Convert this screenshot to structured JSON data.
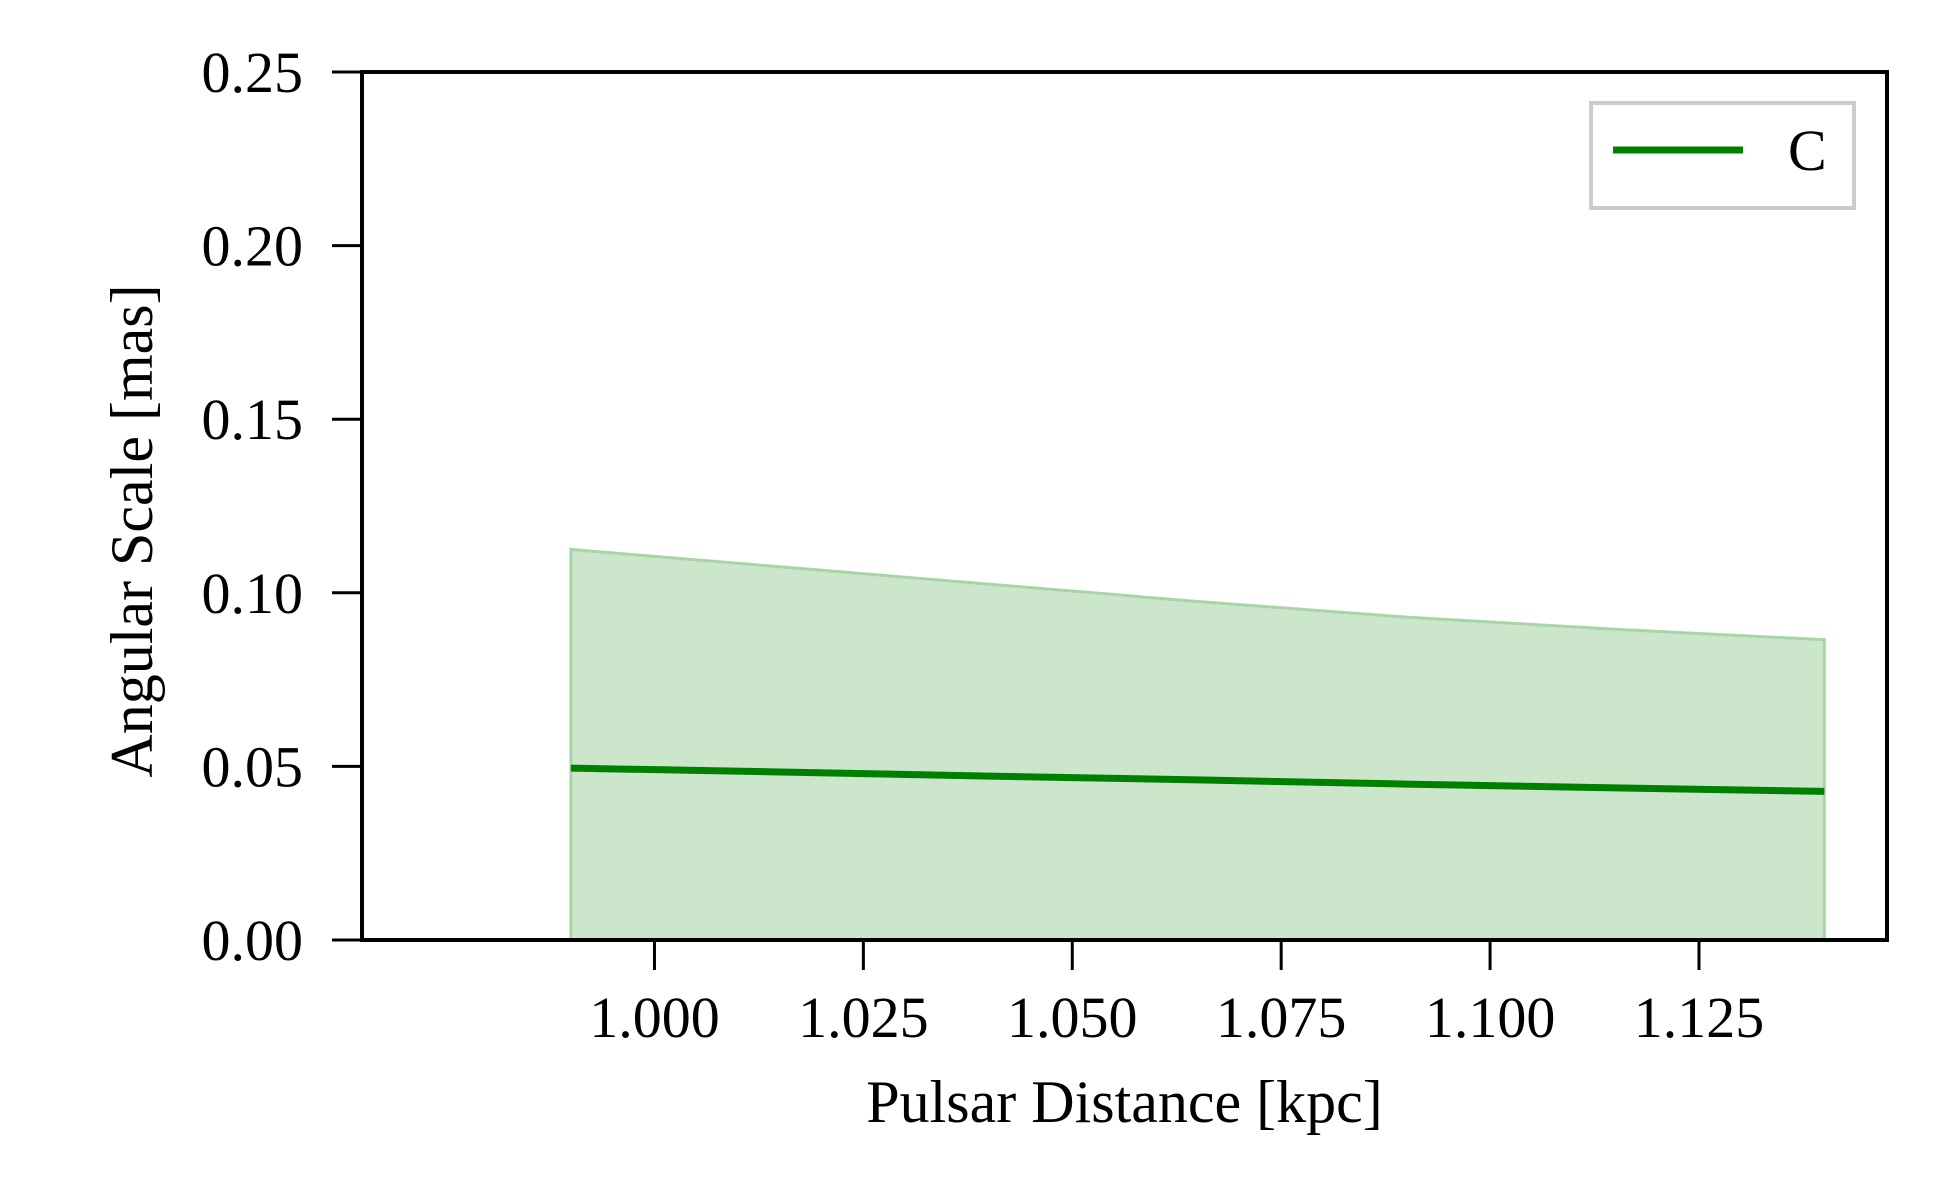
{
  "chart_data": {
    "type": "line",
    "xlabel": "Pulsar Distance [kpc]",
    "ylabel": "Angular Scale [mas]",
    "xlim": [
      0.965,
      1.1475
    ],
    "ylim": [
      0.0,
      0.25
    ],
    "x_ticks": [
      1.0,
      1.025,
      1.05,
      1.075,
      1.1,
      1.125
    ],
    "x_tick_labels": [
      "1.000",
      "1.025",
      "1.050",
      "1.075",
      "1.100",
      "1.125"
    ],
    "y_ticks": [
      0.0,
      0.05,
      0.1,
      0.15,
      0.2,
      0.25
    ],
    "y_tick_labels": [
      "0.00",
      "0.05",
      "0.10",
      "0.15",
      "0.20",
      "0.25"
    ],
    "grid": false,
    "legend_position": "top-right",
    "series": [
      {
        "name": "C",
        "color": "#008000",
        "x": [
          0.99,
          1.015,
          1.04,
          1.065,
          1.09,
          1.115,
          1.14
        ],
        "y": [
          0.0495,
          0.0484,
          0.0472,
          0.0461,
          0.0449,
          0.0438,
          0.0428
        ],
        "band_lower": [
          0.0,
          0.0,
          0.0,
          0.0,
          0.0,
          0.0,
          0.0
        ],
        "band_upper": [
          0.1125,
          0.1075,
          0.1025,
          0.0975,
          0.093,
          0.0895,
          0.0865
        ],
        "band_color": "#cce6cc"
      }
    ]
  }
}
